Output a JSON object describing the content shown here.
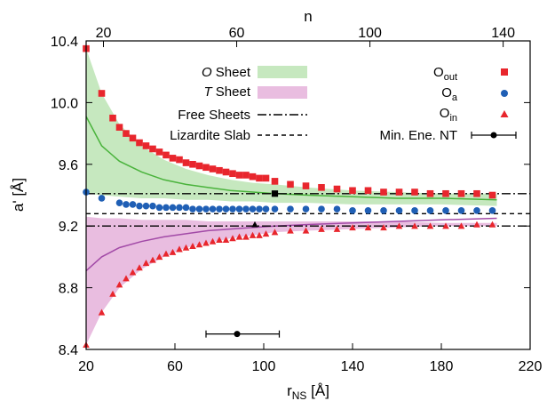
{
  "chart_data": {
    "type": "scatter",
    "xlabel": "r",
    "xlabel_sub": "NS",
    "xlabel_unit": " [Å]",
    "ylabel": "a' [Å]",
    "x2label": "n",
    "xlim": [
      20,
      220
    ],
    "ylim": [
      8.4,
      10.4
    ],
    "x2lim": [
      14.8,
      148.1
    ],
    "x_ticks": [
      20,
      60,
      100,
      140,
      180,
      220
    ],
    "y_ticks": [
      8.4,
      8.8,
      9.2,
      9.6,
      10.0,
      10.4
    ],
    "y_tick_labels": [
      "8.4",
      "8.8",
      "9.2",
      "9.6",
      "10.0",
      "10.4"
    ],
    "x2_ticks": [
      20,
      60,
      100,
      140
    ],
    "legend_left": {
      "o_sheet_italic": "O",
      "o_sheet_rest": " Sheet",
      "t_sheet_italic": "T",
      "t_sheet_rest": " Sheet",
      "free_sheets": "Free Sheets",
      "lizardite_slab": "Lizardite Slab"
    },
    "legend_right": {
      "o_out_main": "O",
      "o_out_sub": "out",
      "o_a_main": "O",
      "o_a_sub": "a",
      "o_in_main": "O",
      "o_in_sub": "in",
      "min_ene_nt": "Min. Ene. NT"
    },
    "colors": {
      "o_out": "#e8262d",
      "o_a": "#1f5fb5",
      "o_in": "#e8262d",
      "o_sheet_fill": "#c6e8bf",
      "o_sheet_line": "#4ab33c",
      "t_sheet_fill": "#e9bde0",
      "t_sheet_line": "#a24aa7"
    },
    "reference_lines": {
      "free_sheets": [
        9.41,
        9.2
      ],
      "lizardite_slab": 9.28
    },
    "o_sheet_band": {
      "x": [
        20,
        27,
        35,
        45,
        55,
        65,
        75,
        85,
        95,
        105,
        120,
        140,
        160,
        180,
        205
      ],
      "upper": [
        10.35,
        10.06,
        9.86,
        9.72,
        9.63,
        9.57,
        9.53,
        9.5,
        9.48,
        9.47,
        9.45,
        9.43,
        9.42,
        9.41,
        9.41
      ],
      "lower": [
        9.41,
        9.4,
        9.39,
        9.38,
        9.38,
        9.37,
        9.37,
        9.36,
        9.36,
        9.35,
        9.35,
        9.34,
        9.34,
        9.34,
        9.33
      ],
      "mid": [
        9.91,
        9.72,
        9.62,
        9.55,
        9.5,
        9.47,
        9.45,
        9.43,
        9.42,
        9.41,
        9.4,
        9.39,
        9.38,
        9.38,
        9.37
      ]
    },
    "t_sheet_band": {
      "x": [
        20,
        27,
        35,
        45,
        55,
        65,
        75,
        85,
        95,
        105,
        120,
        140,
        160,
        180,
        205
      ],
      "upper": [
        9.26,
        9.25,
        9.25,
        9.24,
        9.24,
        9.24,
        9.23,
        9.23,
        9.23,
        9.23,
        9.23,
        9.23,
        9.23,
        9.22,
        9.22
      ],
      "lower": [
        8.43,
        8.64,
        8.8,
        8.92,
        9.0,
        9.06,
        9.09,
        9.12,
        9.14,
        9.16,
        9.17,
        9.18,
        9.19,
        9.2,
        9.2
      ],
      "mid": [
        8.91,
        9.0,
        9.06,
        9.1,
        9.13,
        9.15,
        9.17,
        9.18,
        9.19,
        9.2,
        9.21,
        9.22,
        9.23,
        9.24,
        9.25
      ]
    },
    "series": [
      {
        "key": "o_out",
        "marker": "square",
        "x": [
          20,
          27,
          32,
          35,
          38,
          41,
          44,
          47,
          50,
          53,
          56,
          59,
          62,
          65,
          68,
          71,
          74,
          77,
          80,
          83,
          86,
          89,
          92,
          95,
          98,
          101,
          105,
          112,
          119,
          126,
          133,
          140,
          147,
          154,
          161,
          168,
          175,
          182,
          189,
          196,
          203
        ],
        "y": [
          10.35,
          10.06,
          9.9,
          9.84,
          9.8,
          9.77,
          9.74,
          9.72,
          9.7,
          9.68,
          9.66,
          9.64,
          9.63,
          9.61,
          9.6,
          9.59,
          9.58,
          9.57,
          9.56,
          9.55,
          9.54,
          9.53,
          9.53,
          9.52,
          9.51,
          9.51,
          9.49,
          9.47,
          9.46,
          9.45,
          9.44,
          9.43,
          9.43,
          9.42,
          9.42,
          9.42,
          9.41,
          9.41,
          9.41,
          9.41,
          9.4
        ]
      },
      {
        "key": "o_a",
        "marker": "circle",
        "x": [
          20,
          27,
          35,
          38,
          41,
          44,
          47,
          50,
          53,
          56,
          59,
          62,
          65,
          68,
          71,
          74,
          77,
          80,
          83,
          86,
          89,
          92,
          95,
          98,
          101,
          105,
          112,
          119,
          126,
          133,
          140,
          147,
          154,
          161,
          168,
          175,
          182,
          189,
          196,
          203
        ],
        "y": [
          9.42,
          9.38,
          9.35,
          9.34,
          9.34,
          9.33,
          9.33,
          9.33,
          9.32,
          9.32,
          9.32,
          9.32,
          9.32,
          9.31,
          9.31,
          9.31,
          9.31,
          9.31,
          9.31,
          9.31,
          9.31,
          9.31,
          9.31,
          9.31,
          9.31,
          9.31,
          9.31,
          9.31,
          9.31,
          9.31,
          9.3,
          9.3,
          9.3,
          9.3,
          9.3,
          9.3,
          9.3,
          9.3,
          9.3,
          9.3
        ]
      },
      {
        "key": "o_in",
        "marker": "triangle",
        "x": [
          20,
          27,
          32,
          35,
          38,
          41,
          44,
          47,
          50,
          53,
          56,
          59,
          62,
          65,
          68,
          71,
          74,
          77,
          80,
          83,
          86,
          89,
          92,
          95,
          98,
          101,
          105,
          112,
          119,
          126,
          133,
          140,
          147,
          154,
          161,
          168,
          175,
          182,
          189,
          196,
          203
        ],
        "y": [
          8.43,
          8.64,
          8.76,
          8.82,
          8.86,
          8.9,
          8.93,
          8.96,
          8.98,
          9.0,
          9.02,
          9.03,
          9.05,
          9.06,
          9.07,
          9.08,
          9.09,
          9.1,
          9.11,
          9.11,
          9.12,
          9.13,
          9.13,
          9.14,
          9.14,
          9.15,
          9.16,
          9.17,
          9.17,
          9.18,
          9.18,
          9.19,
          9.19,
          9.19,
          9.2,
          9.2,
          9.2,
          9.2,
          9.2,
          9.21,
          9.21
        ]
      }
    ],
    "black_markers": [
      {
        "marker": "square",
        "x": 105,
        "y": 9.41
      },
      {
        "marker": "triangle",
        "x": 96,
        "y": 9.21
      }
    ],
    "min_ene_nt": {
      "x": 88,
      "y": 8.5,
      "xerr_low": 74,
      "xerr_high": 107
    }
  }
}
